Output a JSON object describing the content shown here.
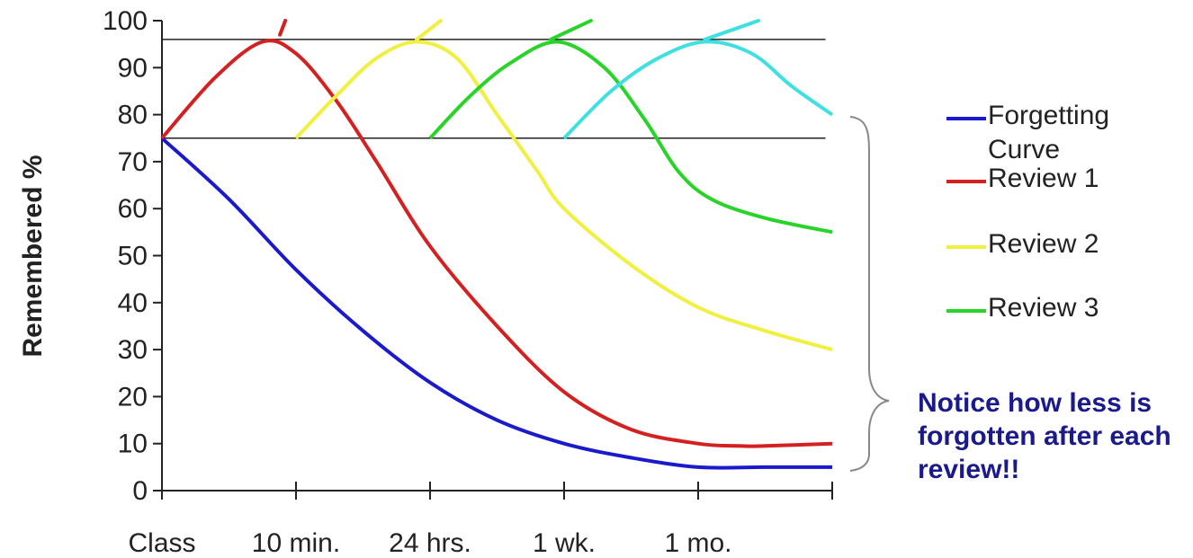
{
  "chart_data": {
    "type": "line",
    "ylabel": "Remembered %",
    "xlabel": "",
    "ylim": [
      0,
      100
    ],
    "y_ticks": [
      "0",
      "10",
      "20",
      "30",
      "40",
      "50",
      "60",
      "70",
      "80",
      "90",
      "100"
    ],
    "x_tick_labels": [
      "Class",
      "10 min.",
      "24 hrs.",
      "1 wk.",
      "1 mo.",
      ""
    ],
    "reference_lines": [
      96,
      75
    ],
    "legend_position": "right",
    "series": [
      {
        "name": "Forgetting Curve",
        "color": "#1a1acc",
        "points": [
          [
            0,
            75
          ],
          [
            0.5,
            62
          ],
          [
            1,
            47
          ],
          [
            1.5,
            34
          ],
          [
            2,
            23
          ],
          [
            2.5,
            15
          ],
          [
            3,
            10
          ],
          [
            3.5,
            7
          ],
          [
            4,
            5
          ],
          [
            4.5,
            5
          ],
          [
            5,
            5
          ]
        ]
      },
      {
        "name": "Review 1",
        "color": "#d42020",
        "points": [
          [
            0,
            75
          ],
          [
            0.4,
            88
          ],
          [
            0.75,
            95.5
          ],
          [
            1,
            93
          ],
          [
            1.3,
            83
          ],
          [
            1.6,
            70
          ],
          [
            2,
            52
          ],
          [
            2.5,
            35
          ],
          [
            3,
            21
          ],
          [
            3.5,
            13
          ],
          [
            4,
            10
          ],
          [
            4.3,
            9.5
          ],
          [
            4.5,
            9.5
          ],
          [
            5,
            10
          ]
        ]
      },
      {
        "name": "Review 2",
        "color": "#f0f040",
        "points": [
          [
            1,
            75
          ],
          [
            1.3,
            84
          ],
          [
            1.6,
            92
          ],
          [
            1.9,
            95.5
          ],
          [
            2.2,
            92
          ],
          [
            2.5,
            80
          ],
          [
            2.8,
            68
          ],
          [
            3,
            60
          ],
          [
            3.5,
            48
          ],
          [
            4,
            39
          ],
          [
            4.5,
            34
          ],
          [
            5,
            30
          ]
        ]
      },
      {
        "name": "Review 3",
        "color": "#28d428",
        "points": [
          [
            2,
            75
          ],
          [
            2.3,
            84
          ],
          [
            2.6,
            91
          ],
          [
            2.95,
            95.5
          ],
          [
            3.3,
            90
          ],
          [
            3.6,
            79
          ],
          [
            3.85,
            68
          ],
          [
            4.1,
            62
          ],
          [
            4.5,
            58
          ],
          [
            5,
            55
          ]
        ]
      },
      {
        "name": "",
        "color": "#40e0e0",
        "points": [
          [
            3,
            75
          ],
          [
            3.35,
            85
          ],
          [
            3.7,
            92
          ],
          [
            4.05,
            95.5
          ],
          [
            4.4,
            93
          ],
          [
            4.7,
            86
          ],
          [
            5,
            80
          ]
        ]
      }
    ],
    "review_spikes": [
      {
        "color": "#d42020",
        "points": [
          [
            0.88,
            97
          ],
          [
            0.92,
            100
          ]
        ]
      },
      {
        "color": "#f0f040",
        "points": [
          [
            1.9,
            96
          ],
          [
            2.08,
            100
          ]
        ]
      },
      {
        "color": "#28d428",
        "points": [
          [
            2.9,
            96
          ],
          [
            3.2,
            100
          ]
        ]
      },
      {
        "color": "#40e0e0",
        "points": [
          [
            4.05,
            96
          ],
          [
            4.45,
            100
          ]
        ]
      }
    ],
    "annotation": "Notice how less is forgotten after each review!!"
  },
  "legend": [
    {
      "label": "Forgetting Curve",
      "color": "#1a1acc"
    },
    {
      "label": "Review 1",
      "color": "#d42020"
    },
    {
      "label": "Review 2",
      "color": "#f0f040"
    },
    {
      "label": "Review 3",
      "color": "#28d428"
    }
  ],
  "colors": {
    "axis": "#222222",
    "reference_line": "#222222",
    "brace": "#888888",
    "annotation": "#1a1a8c"
  }
}
